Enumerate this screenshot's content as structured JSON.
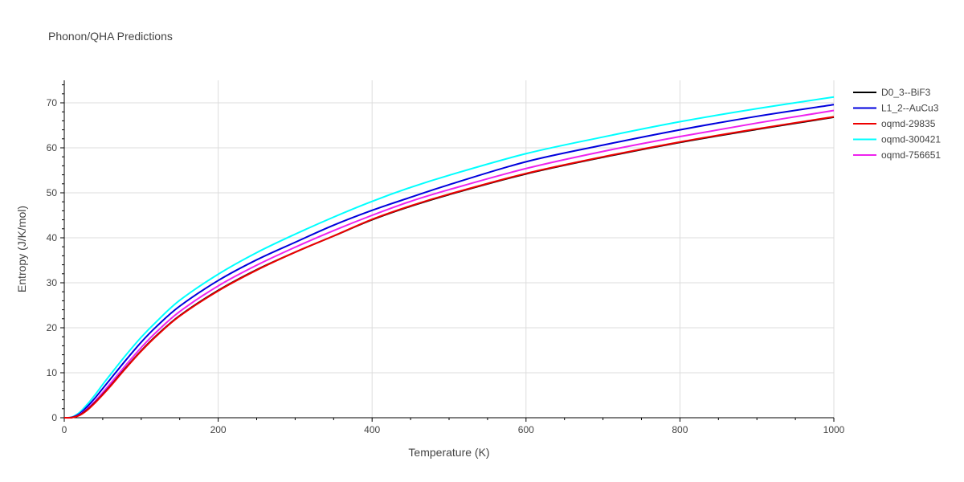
{
  "chart_data": {
    "type": "line",
    "title": "Phonon/QHA Predictions",
    "xlabel": "Temperature (K)",
    "ylabel": "Entropy (J/K/mol)",
    "xlim": [
      0,
      1000
    ],
    "ylim": [
      0,
      75
    ],
    "xticks": [
      0,
      200,
      400,
      600,
      800,
      1000
    ],
    "yticks": [
      0,
      10,
      20,
      30,
      40,
      50,
      60,
      70
    ],
    "grid": true,
    "legend_position": "top-right",
    "x": [
      0,
      10,
      20,
      30,
      40,
      50,
      60,
      80,
      100,
      120,
      150,
      200,
      250,
      300,
      350,
      400,
      450,
      500,
      600,
      700,
      800,
      900,
      1000
    ],
    "series": [
      {
        "name": "D0_3--BiF3",
        "color": "#000000",
        "values": [
          0,
          0.05,
          0.6,
          1.8,
          3.4,
          5.2,
          7.1,
          11.1,
          14.9,
          18.3,
          22.7,
          28.3,
          32.9,
          36.8,
          40.4,
          44.0,
          47.0,
          49.6,
          54.2,
          57.9,
          61.2,
          64.1,
          66.8
        ]
      },
      {
        "name": "L1_2--AuCu3",
        "color": "#0000dd",
        "values": [
          0,
          0.1,
          0.9,
          2.5,
          4.4,
          6.5,
          8.6,
          12.8,
          16.8,
          20.3,
          24.8,
          30.5,
          35.1,
          39.0,
          42.8,
          46.1,
          49.0,
          51.8,
          56.9,
          60.6,
          64.0,
          67.0,
          69.6
        ]
      },
      {
        "name": "oqmd-29835",
        "color": "#ee0000",
        "values": [
          0,
          0.05,
          0.55,
          1.7,
          3.3,
          5.1,
          7.0,
          11.0,
          14.8,
          18.2,
          22.6,
          28.2,
          32.8,
          36.8,
          40.4,
          44.1,
          47.1,
          49.7,
          54.3,
          58.0,
          61.3,
          64.2,
          66.9
        ]
      },
      {
        "name": "oqmd-300421",
        "color": "#00ffff",
        "values": [
          0,
          0.15,
          1.2,
          3.0,
          5.1,
          7.4,
          9.6,
          13.9,
          17.9,
          21.4,
          26.1,
          31.9,
          36.7,
          40.8,
          44.6,
          48.1,
          51.2,
          53.9,
          58.7,
          62.4,
          65.8,
          68.7,
          71.3
        ]
      },
      {
        "name": "oqmd-756651",
        "color": "#ee22ee",
        "values": [
          0,
          0.05,
          0.7,
          2.0,
          3.7,
          5.6,
          7.6,
          11.7,
          15.6,
          19.1,
          23.6,
          29.3,
          33.9,
          37.9,
          41.6,
          45.0,
          48.1,
          50.7,
          55.4,
          59.2,
          62.5,
          65.5,
          68.3
        ]
      }
    ]
  }
}
